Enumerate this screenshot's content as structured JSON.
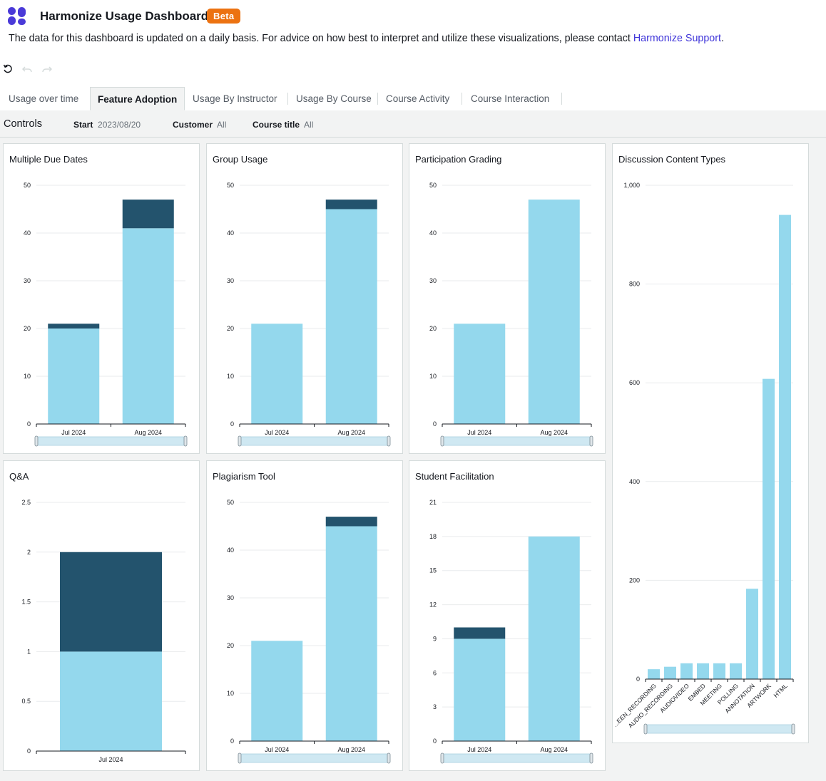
{
  "header": {
    "title": "Harmonize Usage Dashboard",
    "badge": "Beta",
    "description": "The data for this dashboard is updated on a daily basis. For advice on how best to interpret and utilize these visualizations, please contact ",
    "support_link": "Harmonize Support",
    "description_end": "."
  },
  "toolbar": {
    "reset_icon": "reset-icon",
    "undo_icon": "undo-icon",
    "redo_icon": "redo-icon"
  },
  "tabs": [
    {
      "label": "Usage over time"
    },
    {
      "label": "Feature Adoption"
    },
    {
      "label": "Usage By Instructor"
    },
    {
      "label": "Usage By Course"
    },
    {
      "label": "Course Activity"
    },
    {
      "label": "Course Interaction"
    }
  ],
  "controls": {
    "label": "Controls",
    "start_label": "Start",
    "start_value": "2023/08/20",
    "customer_label": "Customer",
    "customer_value": "All",
    "course_label": "Course title",
    "course_value": "All"
  },
  "colors": {
    "light": "#94d8ed",
    "dark": "#23536d",
    "accent": "#ec7211",
    "link": "#3f35d9"
  },
  "chart_data": [
    {
      "id": "mdd",
      "type": "bar",
      "stacked": true,
      "title": "Multiple Due Dates",
      "categories": [
        "Jul 2024",
        "Aug 2024"
      ],
      "ylim": [
        0,
        50
      ],
      "ticks": [
        0,
        10,
        20,
        30,
        40,
        50
      ],
      "tick_labels": [
        "0",
        "10",
        "20",
        "30",
        "40",
        "50"
      ],
      "series": [
        {
          "name": "light",
          "values": [
            20,
            41
          ]
        },
        {
          "name": "dark",
          "values": [
            1,
            6
          ]
        }
      ],
      "scrollbar": true
    },
    {
      "id": "gu",
      "type": "bar",
      "stacked": true,
      "title": "Group Usage",
      "categories": [
        "Jul 2024",
        "Aug 2024"
      ],
      "ylim": [
        0,
        50
      ],
      "ticks": [
        0,
        10,
        20,
        30,
        40,
        50
      ],
      "tick_labels": [
        "0",
        "10",
        "20",
        "30",
        "40",
        "50"
      ],
      "series": [
        {
          "name": "light",
          "values": [
            21,
            45
          ]
        },
        {
          "name": "dark",
          "values": [
            0,
            2
          ]
        }
      ],
      "scrollbar": true
    },
    {
      "id": "pg",
      "type": "bar",
      "stacked": true,
      "title": "Participation Grading",
      "categories": [
        "Jul 2024",
        "Aug 2024"
      ],
      "ylim": [
        0,
        50
      ],
      "ticks": [
        0,
        10,
        20,
        30,
        40,
        50
      ],
      "tick_labels": [
        "0",
        "10",
        "20",
        "30",
        "40",
        "50"
      ],
      "series": [
        {
          "name": "light",
          "values": [
            21,
            47
          ]
        },
        {
          "name": "dark",
          "values": [
            0,
            0
          ]
        }
      ],
      "scrollbar": true
    },
    {
      "id": "dct",
      "type": "bar",
      "stacked": false,
      "title": "Discussion Content Types",
      "rotated": true,
      "categories": [
        "SCREEN_RECORDING",
        "AUDIO_RECORDING",
        "AUDIOVIDEO",
        "EMBED",
        "MEETING",
        "POLLING",
        "ANNOTATION",
        "ARTWORK",
        "HTML"
      ],
      "display_categories": [
        "...EEN_RECORDING",
        "AUDIO_RECORDING",
        "AUDIOVIDEO",
        "EMBED",
        "MEETING",
        "POLLING",
        "ANNOTATION",
        "ARTWORK",
        "HTML"
      ],
      "ylim": [
        0,
        1000
      ],
      "ticks": [
        0,
        200,
        400,
        600,
        800,
        1000
      ],
      "tick_labels": [
        "0",
        "200",
        "400",
        "600",
        "800",
        "1,000"
      ],
      "series": [
        {
          "name": "light",
          "values": [
            20,
            25,
            32,
            32,
            32,
            32,
            183,
            608,
            940
          ]
        }
      ],
      "scrollbar": true
    },
    {
      "id": "qa",
      "type": "bar",
      "stacked": true,
      "title": "Q&A",
      "categories": [
        "Jul 2024"
      ],
      "ylim": [
        0,
        2.5
      ],
      "ticks": [
        0,
        0.5,
        1,
        1.5,
        2,
        2.5
      ],
      "tick_labels": [
        "0",
        "0.5",
        "1",
        "1.5",
        "2",
        "2.5"
      ],
      "series": [
        {
          "name": "light",
          "values": [
            1
          ]
        },
        {
          "name": "dark",
          "values": [
            1
          ]
        }
      ],
      "scrollbar": false
    },
    {
      "id": "pt",
      "type": "bar",
      "stacked": true,
      "title": "Plagiarism Tool",
      "categories": [
        "Jul 2024",
        "Aug 2024"
      ],
      "ylim": [
        0,
        50
      ],
      "ticks": [
        0,
        10,
        20,
        30,
        40,
        50
      ],
      "tick_labels": [
        "0",
        "10",
        "20",
        "30",
        "40",
        "50"
      ],
      "series": [
        {
          "name": "light",
          "values": [
            21,
            45
          ]
        },
        {
          "name": "dark",
          "values": [
            0,
            2
          ]
        }
      ],
      "scrollbar": true
    },
    {
      "id": "sf",
      "type": "bar",
      "stacked": true,
      "title": "Student Facilitation",
      "categories": [
        "Jul 2024",
        "Aug 2024"
      ],
      "ylim": [
        0,
        21
      ],
      "ticks": [
        0,
        3,
        6,
        9,
        12,
        15,
        18,
        21
      ],
      "tick_labels": [
        "0",
        "3",
        "6",
        "9",
        "12",
        "15",
        "18",
        "21"
      ],
      "series": [
        {
          "name": "light",
          "values": [
            9,
            18
          ]
        },
        {
          "name": "dark",
          "values": [
            1,
            0
          ]
        }
      ],
      "scrollbar": true
    }
  ]
}
